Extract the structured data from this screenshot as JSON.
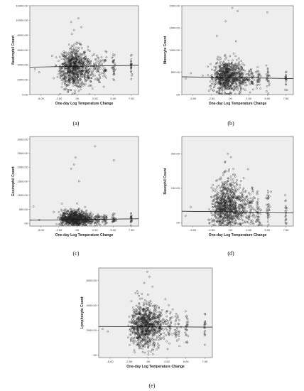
{
  "chart_data": [
    {
      "panel_label": "(a)",
      "type": "scatter",
      "xlabel": "One-day Log Temperature Change",
      "ylabel": "Neutrophil Count",
      "xticks": [
        "-5.00",
        "-2.50",
        ".00",
        "2.50",
        "5.00",
        "7.50"
      ],
      "yticks": [
        "0.00",
        "2000.00",
        "4000.00",
        "6000.00",
        "8000.00",
        "10000.00",
        "12000.00"
      ],
      "xlim": [
        -6.5,
        8.5
      ],
      "ylim": [
        0,
        12000
      ],
      "fit_line": [
        [
          -6.5,
          3700
        ],
        [
          8.5,
          3950
        ]
      ],
      "clusters": [
        {
          "x": -1.5,
          "xs": 0.5,
          "y": 3300,
          "ys": 1000,
          "n": 100
        },
        {
          "x": -0.3,
          "xs": 0.9,
          "y": 3600,
          "ys": 1400,
          "n": 600
        },
        {
          "x": 1.5,
          "xs": 0.4,
          "y": 3300,
          "ys": 1100,
          "n": 80
        },
        {
          "x": 2.8,
          "xs": 0.25,
          "y": 3500,
          "ys": 1000,
          "n": 45
        },
        {
          "x": 3.8,
          "xs": 0.2,
          "y": 3500,
          "ys": 1100,
          "n": 30
        },
        {
          "x": 5.1,
          "xs": 0.12,
          "y": 3500,
          "ys": 1000,
          "n": 30
        },
        {
          "x": 7.5,
          "xs": 0.05,
          "y": 3700,
          "ys": 1000,
          "n": 22
        }
      ],
      "points": [
        [
          -5.8,
          3400
        ],
        [
          -5.2,
          3000
        ],
        [
          -3.2,
          2200
        ],
        [
          -0.8,
          9800
        ],
        [
          0.2,
          10300
        ],
        [
          -0.4,
          8700
        ],
        [
          0.6,
          9100
        ]
      ]
    },
    {
      "panel_label": "(b)",
      "type": "scatter",
      "xlabel": "One-day Log Temperature Change",
      "ylabel": "Monocyte Count",
      "xticks": [
        "-5.00",
        "-2.50",
        ".00",
        "2.50",
        "5.00",
        "7.50"
      ],
      "yticks": [
        ".00",
        "500.00",
        "1000.00",
        "1500.00",
        "2000.00"
      ],
      "xlim": [
        -6.5,
        8.5
      ],
      "ylim": [
        0,
        2000
      ],
      "fit_line": [
        [
          -6.5,
          400
        ],
        [
          8.5,
          360
        ]
      ],
      "clusters": [
        {
          "x": -1.5,
          "xs": 0.5,
          "y": 380,
          "ys": 150,
          "n": 90
        },
        {
          "x": -0.3,
          "xs": 0.9,
          "y": 400,
          "ys": 180,
          "n": 600
        },
        {
          "x": 1.5,
          "xs": 0.4,
          "y": 380,
          "ys": 150,
          "n": 80
        },
        {
          "x": 2.8,
          "xs": 0.25,
          "y": 380,
          "ys": 140,
          "n": 40
        },
        {
          "x": 3.8,
          "xs": 0.2,
          "y": 380,
          "ys": 140,
          "n": 30
        },
        {
          "x": 5.1,
          "xs": 0.12,
          "y": 380,
          "ys": 140,
          "n": 25
        },
        {
          "x": 7.5,
          "xs": 0.05,
          "y": 360,
          "ys": 120,
          "n": 18
        }
      ],
      "points": [
        [
          -6.0,
          360
        ],
        [
          -5.3,
          480
        ],
        [
          0.3,
          1950
        ],
        [
          1.0,
          1880
        ],
        [
          5.0,
          1850
        ],
        [
          -0.6,
          1650
        ],
        [
          -1.8,
          1320
        ],
        [
          0.8,
          1200
        ]
      ]
    },
    {
      "panel_label": "(c)",
      "type": "scatter",
      "xlabel": "One-day Log Temperature Change",
      "ylabel": "Eosinophil Count",
      "xticks": [
        "-5.00",
        "-2.50",
        ".00",
        "2.50",
        "5.00",
        "7.50"
      ],
      "yticks": [
        ".00",
        "500.00",
        "1000.00",
        "1500.00",
        "2000.00",
        "2500.00",
        "3000.00"
      ],
      "xlim": [
        -6.5,
        8.5
      ],
      "ylim": [
        -100,
        3100
      ],
      "fit_line": [
        [
          -6.5,
          110
        ],
        [
          8.5,
          160
        ]
      ],
      "clusters": [
        {
          "x": -1.5,
          "xs": 0.5,
          "y": 150,
          "ys": 120,
          "n": 90
        },
        {
          "x": -0.3,
          "xs": 0.9,
          "y": 170,
          "ys": 150,
          "n": 600
        },
        {
          "x": 1.5,
          "xs": 0.4,
          "y": 160,
          "ys": 120,
          "n": 80
        },
        {
          "x": 2.8,
          "xs": 0.25,
          "y": 150,
          "ys": 110,
          "n": 40
        },
        {
          "x": 3.8,
          "xs": 0.2,
          "y": 160,
          "ys": 110,
          "n": 30
        },
        {
          "x": 5.1,
          "xs": 0.12,
          "y": 150,
          "ys": 110,
          "n": 25
        },
        {
          "x": 7.5,
          "xs": 0.05,
          "y": 160,
          "ys": 100,
          "n": 20
        }
      ],
      "points": [
        [
          -6.0,
          600
        ],
        [
          -5.2,
          120
        ],
        [
          -0.2,
          2350
        ],
        [
          -0.4,
          2100
        ],
        [
          -0.8,
          1950
        ],
        [
          2.5,
          2750
        ],
        [
          5.1,
          2250
        ],
        [
          0.3,
          1500
        ]
      ]
    },
    {
      "panel_label": "(d)",
      "type": "scatter",
      "xlabel": "One-day Log Temperature Change",
      "ylabel": "Basophil Count",
      "xticks": [
        "-5.00",
        "-2.50",
        ".00",
        "2.50",
        "5.00",
        "7.50"
      ],
      "yticks": [
        ".00",
        "100.00",
        "200.00"
      ],
      "xlim": [
        -6.5,
        8.5
      ],
      "ylim": [
        -10,
        250
      ],
      "fit_line": [
        [
          -6.5,
          33
        ],
        [
          8.5,
          29
        ]
      ],
      "clusters": [
        {
          "x": -1.5,
          "xs": 0.5,
          "y": 35,
          "ys": 30,
          "n": 140
        },
        {
          "x": -0.3,
          "xs": 0.9,
          "y": 45,
          "ys": 40,
          "n": 650
        },
        {
          "x": 1.5,
          "xs": 0.4,
          "y": 35,
          "ys": 30,
          "n": 110
        },
        {
          "x": 2.8,
          "xs": 0.25,
          "y": 35,
          "ys": 30,
          "n": 60
        },
        {
          "x": 3.8,
          "xs": 0.2,
          "y": 35,
          "ys": 30,
          "n": 45
        },
        {
          "x": 5.1,
          "xs": 0.12,
          "y": 35,
          "ys": 30,
          "n": 35
        },
        {
          "x": 7.5,
          "xs": 0.05,
          "y": 30,
          "ys": 25,
          "n": 20
        }
      ],
      "points": [
        [
          -6.0,
          20
        ],
        [
          -5.3,
          45
        ],
        [
          -0.3,
          200
        ],
        [
          0.1,
          190
        ],
        [
          -0.7,
          175
        ],
        [
          2.4,
          155
        ],
        [
          5.5,
          90
        ],
        [
          7.4,
          80
        ]
      ]
    },
    {
      "panel_label": "(e)",
      "type": "scatter",
      "xlabel": "One-day Log Temperature Change",
      "ylabel": "Lymphocyte Count",
      "xticks": [
        "-5.00",
        "-2.50",
        ".00",
        "2.50",
        "5.00",
        "7.50"
      ],
      "yticks": [
        ".00",
        "2000.00",
        "4000.00",
        "6000.00"
      ],
      "xlim": [
        -6.5,
        8.5
      ],
      "ylim": [
        -200,
        7000
      ],
      "fit_line": [
        [
          -6.5,
          2300
        ],
        [
          8.5,
          2250
        ]
      ],
      "clusters": [
        {
          "x": -1.5,
          "xs": 0.5,
          "y": 2300,
          "ys": 700,
          "n": 100
        },
        {
          "x": -0.3,
          "xs": 0.9,
          "y": 2400,
          "ys": 900,
          "n": 650
        },
        {
          "x": 1.5,
          "xs": 0.4,
          "y": 2300,
          "ys": 700,
          "n": 80
        },
        {
          "x": 2.8,
          "xs": 0.25,
          "y": 2300,
          "ys": 650,
          "n": 40
        },
        {
          "x": 3.8,
          "xs": 0.2,
          "y": 2300,
          "ys": 650,
          "n": 30
        },
        {
          "x": 5.1,
          "xs": 0.12,
          "y": 2300,
          "ys": 650,
          "n": 25
        },
        {
          "x": 7.5,
          "xs": 0.05,
          "y": 2300,
          "ys": 600,
          "n": 18
        }
      ],
      "points": [
        [
          -6.0,
          2100
        ],
        [
          -5.3,
          1900
        ],
        [
          -0.1,
          6700
        ],
        [
          0.2,
          6300
        ],
        [
          -0.5,
          5800
        ],
        [
          0.6,
          5500
        ],
        [
          2.3,
          4500
        ]
      ]
    }
  ]
}
